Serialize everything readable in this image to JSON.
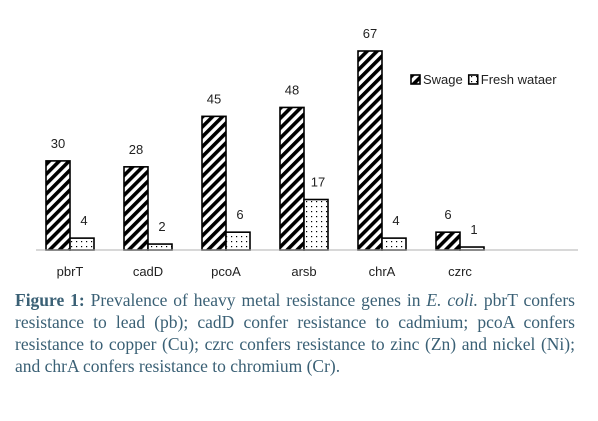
{
  "chart_data": {
    "type": "bar",
    "categories": [
      "pbrT",
      "cadD",
      "pcoA",
      "arsb",
      "chrA",
      "czrc"
    ],
    "series": [
      {
        "name": "Swage",
        "values": [
          30,
          28,
          45,
          48,
          67,
          6
        ],
        "pattern": "diagonal-hatch"
      },
      {
        "name": "Fresh wataer",
        "values": [
          4,
          2,
          6,
          17,
          4,
          1
        ],
        "pattern": "dots"
      }
    ],
    "ylim": [
      0,
      67
    ],
    "grid": false,
    "legend": "top-right",
    "data_labels": true
  },
  "caption": {
    "lead": "Figure 1:",
    "text_1": " Prevalence of heavy metal resistance genes in ",
    "em": "E. coli.",
    "text_2": " pbrT confers resistance to lead (pb); cadD confer resistance to cadmium; pcoA confers resistance to copper (Cu); czrc confers resistance to zinc (Zn) and nickel (Ni); and chrA confers resistance to chromium (Cr)."
  },
  "colors": {
    "bar_stroke": "#000000",
    "caption_text": "#3a6075"
  }
}
